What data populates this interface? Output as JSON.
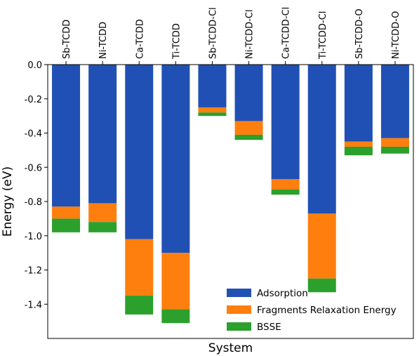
{
  "chart_data": {
    "type": "bar",
    "stacked": true,
    "orientation": "downward",
    "xlabel": "System",
    "ylabel": "Energy (eV)",
    "ylim": [
      -1.6,
      0.0
    ],
    "yticks": [
      "0.0",
      "-0.2",
      "-0.4",
      "-0.6",
      "-0.8",
      "-1.0",
      "-1.2",
      "-1.4"
    ],
    "ytick_values": [
      0.0,
      -0.2,
      -0.4,
      -0.6,
      -0.8,
      -1.0,
      -1.2,
      -1.4
    ],
    "x_tick_position": "top",
    "grid": false,
    "legend_position": "lower-right",
    "categories": [
      "Sb-TCDD",
      "Ni-TCDD",
      "Ca-TCDD",
      "Ti-TCDD",
      "Sb-TCDD-Cl",
      "Ni-TCDD-Cl",
      "Ca-TCDD-Cl",
      "Ti-TCDD-Cl",
      "Sb-TCDD-O",
      "Ni-TCDD-O"
    ],
    "series": [
      {
        "name": "Adsorption",
        "color": "#2050b4",
        "values": [
          -0.83,
          -0.81,
          -1.02,
          -1.1,
          -0.25,
          -0.33,
          -0.67,
          -0.87,
          -0.45,
          -0.43
        ]
      },
      {
        "name": "Fragments Relaxation Energy",
        "color": "#ff7f0e",
        "values": [
          -0.07,
          -0.11,
          -0.33,
          -0.33,
          -0.03,
          -0.08,
          -0.06,
          -0.38,
          -0.03,
          -0.05
        ]
      },
      {
        "name": "BSSE",
        "color": "#2ca02c",
        "values": [
          -0.08,
          -0.06,
          -0.11,
          -0.08,
          -0.02,
          -0.03,
          -0.03,
          -0.08,
          -0.05,
          -0.04
        ]
      }
    ]
  }
}
